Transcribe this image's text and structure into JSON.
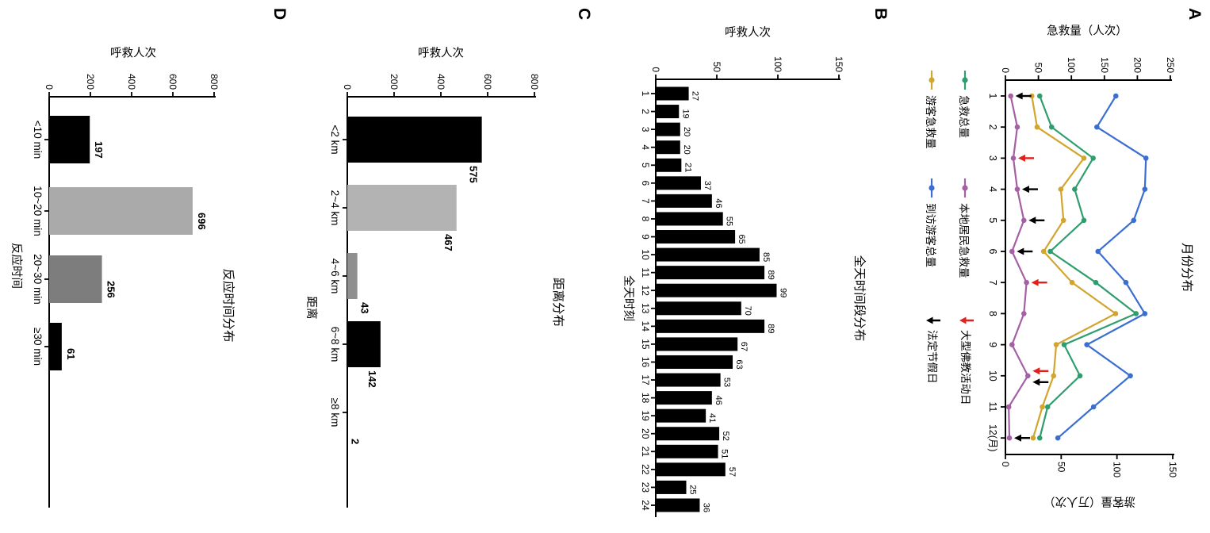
{
  "figure_background": "#ffffff",
  "chart_data": [
    {
      "panel": "A",
      "type": "line",
      "title": "月份分布",
      "xtick_labels": [
        "1",
        "2",
        "3",
        "4",
        "5",
        "6",
        "7",
        "8",
        "9",
        "10",
        "11",
        "12(月)"
      ],
      "ylabel_left": "急救量（人次）",
      "ylabel_right": "游客量（万人次）",
      "ylim_left": [
        0,
        250
      ],
      "yticks_left": [
        0,
        50,
        100,
        150,
        200,
        250
      ],
      "ylim_right": [
        0,
        150
      ],
      "yticks_right": [
        0,
        50,
        100,
        150
      ],
      "grid": false,
      "series": [
        {
          "name": "急救总量",
          "axis": "left",
          "color": "#2f9e6e",
          "values": [
            52,
            70,
            133,
            105,
            119,
            68,
            137,
            198,
            89,
            113,
            64,
            52
          ]
        },
        {
          "name": "游客急救量",
          "axis": "left",
          "color": "#d2a52e",
          "values": [
            40,
            48,
            119,
            84,
            88,
            58,
            101,
            167,
            77,
            73,
            56,
            42
          ]
        },
        {
          "name": "本地居民急救量",
          "axis": "left",
          "color": "#a55fa5",
          "values": [
            8,
            18,
            12,
            18,
            28,
            10,
            32,
            28,
            10,
            34,
            5,
            6
          ]
        },
        {
          "name": "到访游客总量",
          "axis": "right",
          "color": "#3a6ed0",
          "values": [
            99,
            82,
            126,
            125,
            115,
            83,
            108,
            125,
            73,
            112,
            79,
            47
          ]
        }
      ],
      "annotations": [
        {
          "name": "法定节假日",
          "marker": "arrow-down",
          "color": "#000000",
          "months": [
            1,
            4,
            5,
            6,
            10,
            12
          ]
        },
        {
          "name": "大型佛教活动日",
          "marker": "arrow-down",
          "color": "#e3211c",
          "months": [
            3,
            7,
            10
          ]
        }
      ],
      "legend": {
        "position": "below-chart",
        "rows": [
          [
            {
              "label": "急救总量",
              "marker": "line",
              "color": "#2f9e6e"
            },
            {
              "label": "本地居民急救量",
              "marker": "line",
              "color": "#a55fa5"
            },
            {
              "label": "大型佛教活动日",
              "marker": "arrow",
              "color": "#e3211c"
            }
          ],
          [
            {
              "label": "游客急救量",
              "marker": "line",
              "color": "#d2a52e"
            },
            {
              "label": "到访游客总量",
              "marker": "line",
              "color": "#3a6ed0"
            },
            {
              "label": "法定节假日",
              "marker": "arrow",
              "color": "#000000"
            }
          ]
        ]
      }
    },
    {
      "panel": "B",
      "type": "bar",
      "title": "全天时间段分布",
      "xlabel": "全天时刻",
      "ylabel": "呼救人次",
      "ylim": [
        0,
        150
      ],
      "yticks": [
        0,
        50,
        100,
        150
      ],
      "categories": [
        "1",
        "2",
        "3",
        "4",
        "5",
        "6",
        "7",
        "8",
        "9",
        "10",
        "11",
        "12",
        "13",
        "14",
        "15",
        "16",
        "17",
        "18",
        "19",
        "20",
        "21",
        "22",
        "23",
        "24"
      ],
      "values": [
        27,
        19,
        20,
        20,
        21,
        37,
        46,
        55,
        65,
        85,
        89,
        99,
        70,
        89,
        67,
        63,
        53,
        46,
        41,
        52,
        51,
        57,
        25,
        36
      ],
      "bar_color": "#000000",
      "value_labels": true
    },
    {
      "panel": "C",
      "type": "bar",
      "title": "距离分布",
      "xlabel": "距离",
      "ylabel": "呼救人次",
      "ylim": [
        0,
        800
      ],
      "yticks": [
        0,
        200,
        400,
        600,
        800
      ],
      "categories": [
        "<2 km",
        "2~4 km",
        "4~6 km",
        "6~8 km",
        "≥8 km"
      ],
      "values": [
        575,
        467,
        43,
        142,
        2
      ],
      "bar_colors": [
        "#000000",
        "#b3b3b3",
        "#8f8f8f",
        "#000000",
        "#000000"
      ],
      "value_labels": true
    },
    {
      "panel": "D",
      "type": "bar",
      "title": "反应时间分布",
      "xlabel": "反应时间",
      "ylabel": "呼救人次",
      "ylim": [
        0,
        800
      ],
      "yticks": [
        0,
        200,
        400,
        600,
        800
      ],
      "categories": [
        "<10 min",
        "10~20 min",
        "20~30 min",
        "≥30 min"
      ],
      "values": [
        197,
        696,
        256,
        61
      ],
      "bar_colors": [
        "#000000",
        "#aaaaaa",
        "#7d7d7d",
        "#000000"
      ],
      "value_labels": true
    }
  ]
}
